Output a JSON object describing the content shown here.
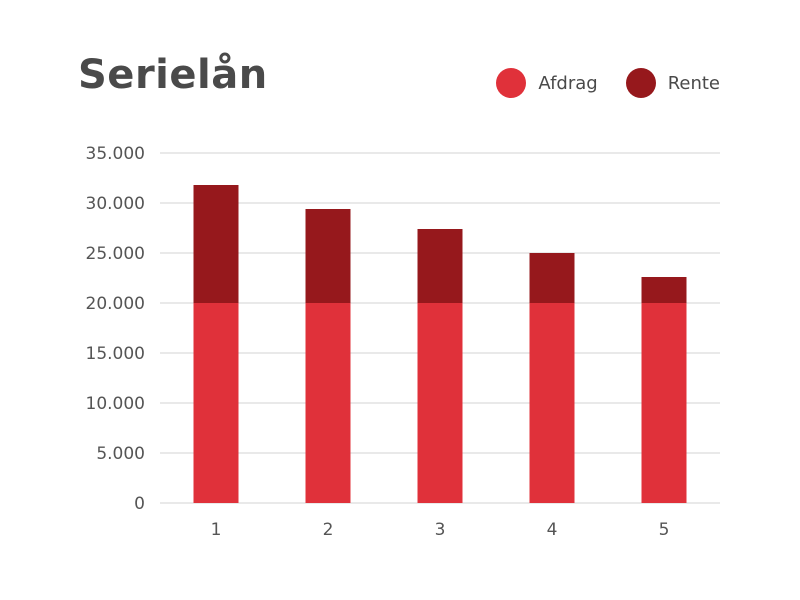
{
  "chart_data": {
    "type": "bar",
    "stacked": true,
    "title": "Serielån",
    "categories": [
      "1",
      "2",
      "3",
      "4",
      "5"
    ],
    "series": [
      {
        "name": "Afdrag",
        "color": "#e0313a",
        "values": [
          20000,
          20000,
          20000,
          20000,
          20000
        ]
      },
      {
        "name": "Rente",
        "color": "#96181c",
        "values": [
          11800,
          9400,
          7400,
          5000,
          2600
        ]
      }
    ],
    "ylim": [
      0,
      35000
    ],
    "yticks": [
      {
        "value": 0,
        "label": "0"
      },
      {
        "value": 5000,
        "label": "5.000"
      },
      {
        "value": 10000,
        "label": "10.000"
      },
      {
        "value": 15000,
        "label": "15.000"
      },
      {
        "value": 20000,
        "label": "20.000"
      },
      {
        "value": 25000,
        "label": "25.000"
      },
      {
        "value": 30000,
        "label": "30.000"
      },
      {
        "value": 35000,
        "label": "35.000"
      }
    ],
    "grid": true,
    "legend_position": "top-right",
    "gridline_color": "#d3d3d3"
  }
}
